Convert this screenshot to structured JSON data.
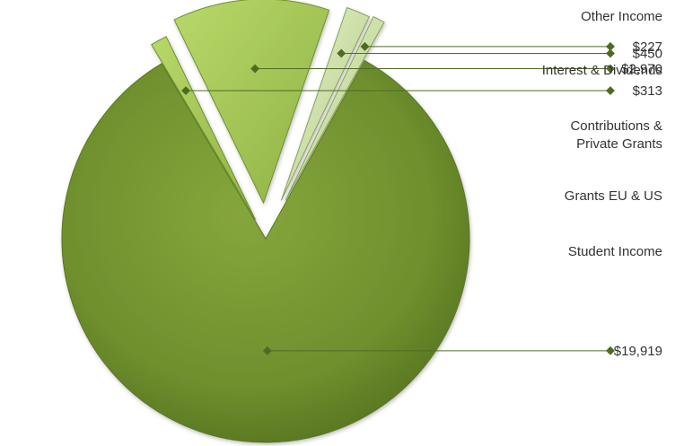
{
  "chart_data": {
    "type": "pie",
    "title": "",
    "exploded": true,
    "colors": {
      "main": "#6f8f2e",
      "slice_light": "#a7c95a",
      "slice_pale": "#c8dca0",
      "leader": "#4f6b22"
    },
    "slices": [
      {
        "label": "Student Income",
        "value_label": "$19,919",
        "value": 19919
      },
      {
        "label": "Grants EU & US",
        "value_label": "$313",
        "value": 313
      },
      {
        "label": "Contributions & Private Grants",
        "label_lines": [
          "Contributions &",
          "Private Grants"
        ],
        "value_label": "$2,970",
        "value": 2970
      },
      {
        "label": "Interest & Dividends",
        "value_label": "$450",
        "value": 450
      },
      {
        "label": "Other Income",
        "value_label": "$227",
        "value": 227
      }
    ]
  }
}
